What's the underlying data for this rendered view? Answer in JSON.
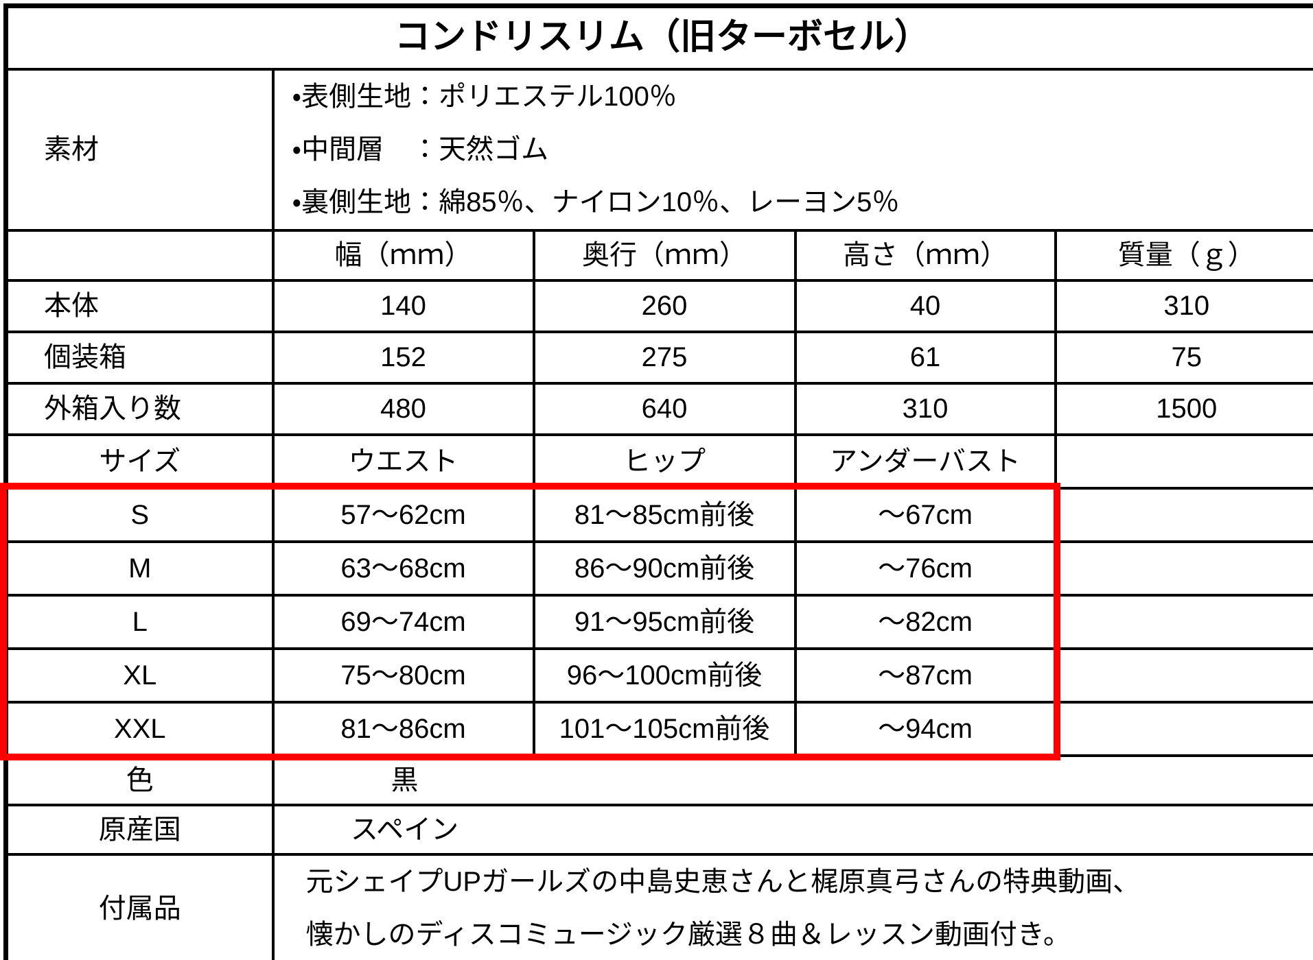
{
  "title": "コンドリスリム（旧ターボセル）",
  "material": {
    "label": "素材",
    "lines": [
      "・表側生地：ポリエステル100％",
      "・中間層　：天然ゴム",
      "・裏側生地：綿85％、ナイロン10％、レーヨン5％"
    ]
  },
  "dimensions": {
    "headers": [
      "幅（ｍｍ）",
      "奥行（ｍｍ）",
      "高さ（ｍｍ）",
      "質量（ｇ）"
    ],
    "rows": [
      {
        "label": "本体",
        "width": "140",
        "depth": "260",
        "height": "40",
        "weight": "310"
      },
      {
        "label": "個装箱",
        "width": "152",
        "depth": "275",
        "height": "61",
        "weight": "75"
      },
      {
        "label": "外箱入り数",
        "width": "480",
        "depth": "640",
        "height": "310",
        "weight": "1500"
      }
    ]
  },
  "sizes": {
    "headers": [
      "サイズ",
      "ウエスト",
      "ヒップ",
      "アンダーバスト"
    ],
    "highlight_color": "#ff0000",
    "rows": [
      {
        "label": "S",
        "waist": "57〜62cm",
        "hip": "81〜85cm前後",
        "underbust": "〜67cm"
      },
      {
        "label": "M",
        "waist": "63〜68cm",
        "hip": "86〜90cm前後",
        "underbust": "〜76cm"
      },
      {
        "label": "L",
        "waist": "69〜74cm",
        "hip": "91〜95cm前後",
        "underbust": "〜82cm"
      },
      {
        "label": "XL",
        "waist": "75〜80cm",
        "hip": "96〜100cm前後",
        "underbust": "〜87cm"
      },
      {
        "label": "XXL",
        "waist": "81〜86cm",
        "hip": "101〜105cm前後",
        "underbust": "〜94cm"
      }
    ]
  },
  "info": [
    {
      "label": "色",
      "value": "黒"
    },
    {
      "label": "原産国",
      "value": "スペイン"
    }
  ],
  "accessories": {
    "label": "付属品",
    "lines": [
      "元シェイプUPガールズの中島史恵さんと梶原真弓さんの特典動画、",
      "懐かしのディスコミュージック厳選８曲＆レッスン動画付き。"
    ]
  }
}
